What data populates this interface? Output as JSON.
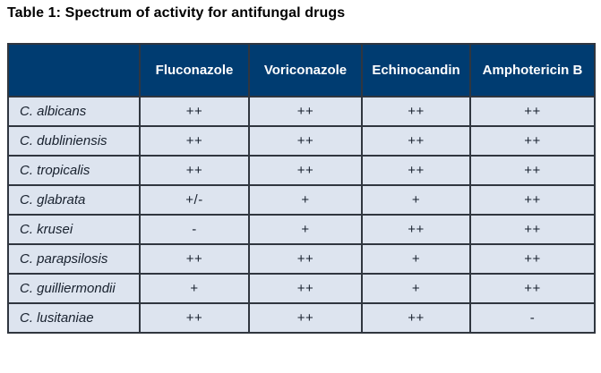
{
  "title": "Table 1: Spectrum of activity for antifungal drugs",
  "table": {
    "columns": [
      "",
      "Fluconazole",
      "Voriconazole",
      "Echinocandin",
      "Amphotericin B"
    ],
    "rows": [
      {
        "species": "C. albicans",
        "values": [
          "++",
          "++",
          "++",
          "++"
        ]
      },
      {
        "species": "C. dubliniensis",
        "values": [
          "++",
          "++",
          "++",
          "++"
        ]
      },
      {
        "species": "C. tropicalis",
        "values": [
          "++",
          "++",
          "++",
          "++"
        ]
      },
      {
        "species": "C. glabrata",
        "values": [
          "+/-",
          "+",
          "+",
          "++"
        ]
      },
      {
        "species": "C. krusei",
        "values": [
          "-",
          "+",
          "++",
          "++"
        ]
      },
      {
        "species": "C. parapsilosis",
        "values": [
          "++",
          "++",
          "+",
          "++"
        ]
      },
      {
        "species": "C. guilliermondii",
        "values": [
          "+",
          "++",
          "+",
          "++"
        ]
      },
      {
        "species": "C. lusitaniae",
        "values": [
          "++",
          "++",
          "++",
          "-"
        ]
      }
    ],
    "colors": {
      "header_bg": "#003c71",
      "body_bg": "#dde4ef",
      "border": "#30363f",
      "header_text": "#ffffff",
      "body_text": "#18212e"
    }
  }
}
